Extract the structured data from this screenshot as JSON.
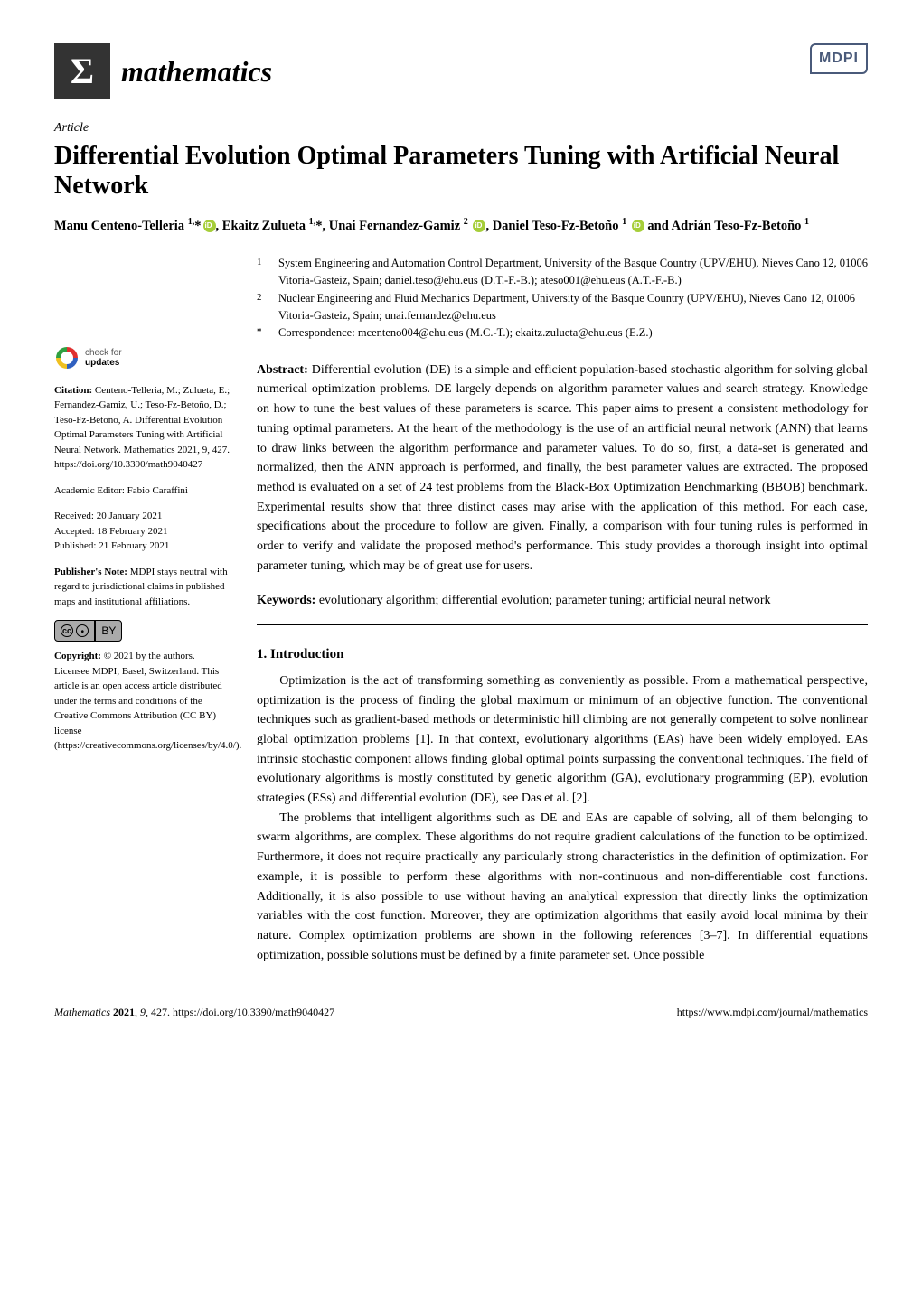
{
  "journal": {
    "name": "mathematics",
    "publisher_logo": "MDPI",
    "sigma": "Σ"
  },
  "article_type": "Article",
  "title": "Differential Evolution Optimal Parameters Tuning with Artificial Neural Network",
  "authors_html": "Manu Centeno-Telleria <sup>1,</sup>* , Ekaitz Zulueta <sup>1,</sup>*, Unai Fernandez-Gamiz <sup>2</sup> , Daniel Teso-Fz-Betoño <sup>1</sup> and Adrián Teso-Fz-Betoño <sup>1</sup>",
  "affiliations": [
    {
      "num": "1",
      "text": "System Engineering and Automation Control Department, University of the Basque Country (UPV/EHU), Nieves Cano 12, 01006 Vitoria-Gasteiz, Spain; daniel.teso@ehu.eus (D.T.-F.-B.); ateso001@ehu.eus (A.T.-F.-B.)"
    },
    {
      "num": "2",
      "text": "Nuclear Engineering and Fluid Mechanics Department, University of the Basque Country (UPV/EHU), Nieves Cano 12, 01006 Vitoria-Gasteiz, Spain; unai.fernandez@ehu.eus"
    },
    {
      "num": "*",
      "text": "Correspondence: mcenteno004@ehu.eus (M.C.-T.); ekaitz.zulueta@ehu.eus (E.Z.)"
    }
  ],
  "abstract_label": "Abstract:",
  "abstract": "Differential evolution (DE) is a simple and efficient population-based stochastic algorithm for solving global numerical optimization problems. DE largely depends on algorithm parameter values and search strategy. Knowledge on how to tune the best values of these parameters is scarce. This paper aims to present a consistent methodology for tuning optimal parameters. At the heart of the methodology is the use of an artificial neural network (ANN) that learns to draw links between the algorithm performance and parameter values. To do so, first, a data-set is generated and normalized, then the ANN approach is performed, and finally, the best parameter values are extracted. The proposed method is evaluated on a set of 24 test problems from the Black-Box Optimization Benchmarking (BBOB) benchmark. Experimental results show that three distinct cases may arise with the application of this method. For each case, specifications about the procedure to follow are given. Finally, a comparison with four tuning rules is performed in order to verify and validate the proposed method's performance. This study provides a thorough insight into optimal parameter tuning, which may be of great use for users.",
  "keywords_label": "Keywords:",
  "keywords": "evolutionary algorithm; differential evolution; parameter tuning; artificial neural network",
  "section1_heading": "1. Introduction",
  "body_p1": "Optimization is the act of transforming something as conveniently as possible. From a mathematical perspective, optimization is the process of finding the global maximum or minimum of an objective function. The conventional techniques such as gradient-based methods or deterministic hill climbing are not generally competent to solve nonlinear global optimization problems [1]. In that context, evolutionary algorithms (EAs) have been widely employed. EAs intrinsic stochastic component allows finding global optimal points surpassing the conventional techniques. The field of evolutionary algorithms is mostly constituted by genetic algorithm (GA), evolutionary programming (EP), evolution strategies (ESs) and differential evolution (DE), see Das et al. [2].",
  "body_p2": "The problems that intelligent algorithms such as DE and EAs are capable of solving, all of them belonging to swarm algorithms, are complex. These algorithms do not require gradient calculations of the function to be optimized. Furthermore, it does not require practically any particularly strong characteristics in the definition of optimization. For example, it is possible to perform these algorithms with non-continuous and non-differentiable cost functions. Additionally, it is also possible to use without having an analytical expression that directly links the optimization variables with the cost function. Moreover, they are optimization algorithms that easily avoid local minima by their nature. Complex optimization problems are shown in the following references [3–7]. In differential equations optimization, possible solutions must be defined by a finite parameter set. Once possible",
  "sidebar": {
    "check_line1": "check for",
    "check_line2": "updates",
    "citation_label": "Citation:",
    "citation": "Centeno-Telleria, M.; Zulueta, E.; Fernandez-Gamiz, U.; Teso-Fz-Betoño, D.; Teso-Fz-Betoño, A. Differential Evolution Optimal Parameters Tuning with Artificial Neural Network. Mathematics 2021, 9, 427. https://doi.org/10.3390/math9040427",
    "editor": "Academic Editor: Fabio Caraffini",
    "received": "Received: 20 January 2021",
    "accepted": "Accepted: 18 February 2021",
    "published": "Published: 21 February 2021",
    "publishers_note_label": "Publisher's Note:",
    "publishers_note": "MDPI stays neutral with regard to jurisdictional claims in published maps and institutional affiliations.",
    "cc_label": "CC",
    "by_label": "BY",
    "copyright_label": "Copyright:",
    "copyright": "© 2021 by the authors. Licensee MDPI, Basel, Switzerland. This article is an open access article distributed under the terms and conditions of the Creative Commons Attribution (CC BY) license (https://creativecommons.org/licenses/by/4.0/)."
  },
  "footer": {
    "left": "Mathematics 2021, 9, 427. https://doi.org/10.3390/math9040427",
    "right": "https://www.mdpi.com/journal/mathematics"
  },
  "colors": {
    "text": "#000000",
    "bg": "#ffffff",
    "link": "#0050a0",
    "orcid": "#a6ce39",
    "mdpi_border": "#4a5a7a"
  }
}
